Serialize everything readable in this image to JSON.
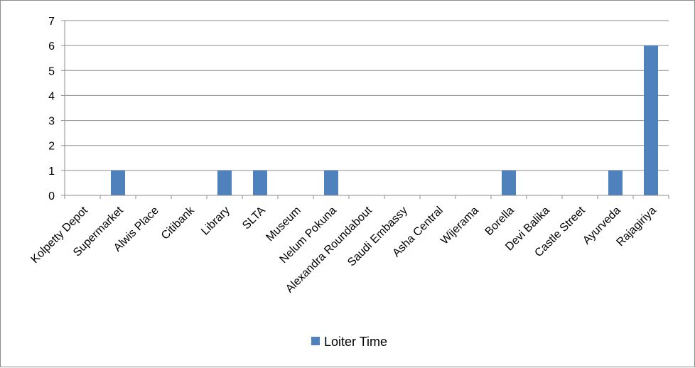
{
  "chart_data": {
    "type": "bar",
    "categories": [
      "Kolpetty Depot",
      "Supermarket",
      "Alwis Place",
      "Citibank",
      "Library",
      "SLTA",
      "Museum",
      "Nelum Pokuna",
      "Alexandra Roundabout",
      "Saudi Embassy",
      "Asha Central",
      "Wijerama",
      "Borella",
      "Devi Balika",
      "Castle Street",
      "Ayurveda",
      "Rajagiriya"
    ],
    "series": [
      {
        "name": "Loiter Time",
        "color": "#4f81bd",
        "values": [
          0,
          1,
          0,
          0,
          1,
          1,
          0,
          1,
          0,
          0,
          0,
          0,
          1,
          0,
          0,
          1,
          6
        ]
      }
    ],
    "ylim": [
      0,
      7
    ],
    "yticks": [
      0,
      1,
      2,
      3,
      4,
      5,
      6,
      7
    ],
    "grid": true,
    "legend_position": "bottom"
  }
}
